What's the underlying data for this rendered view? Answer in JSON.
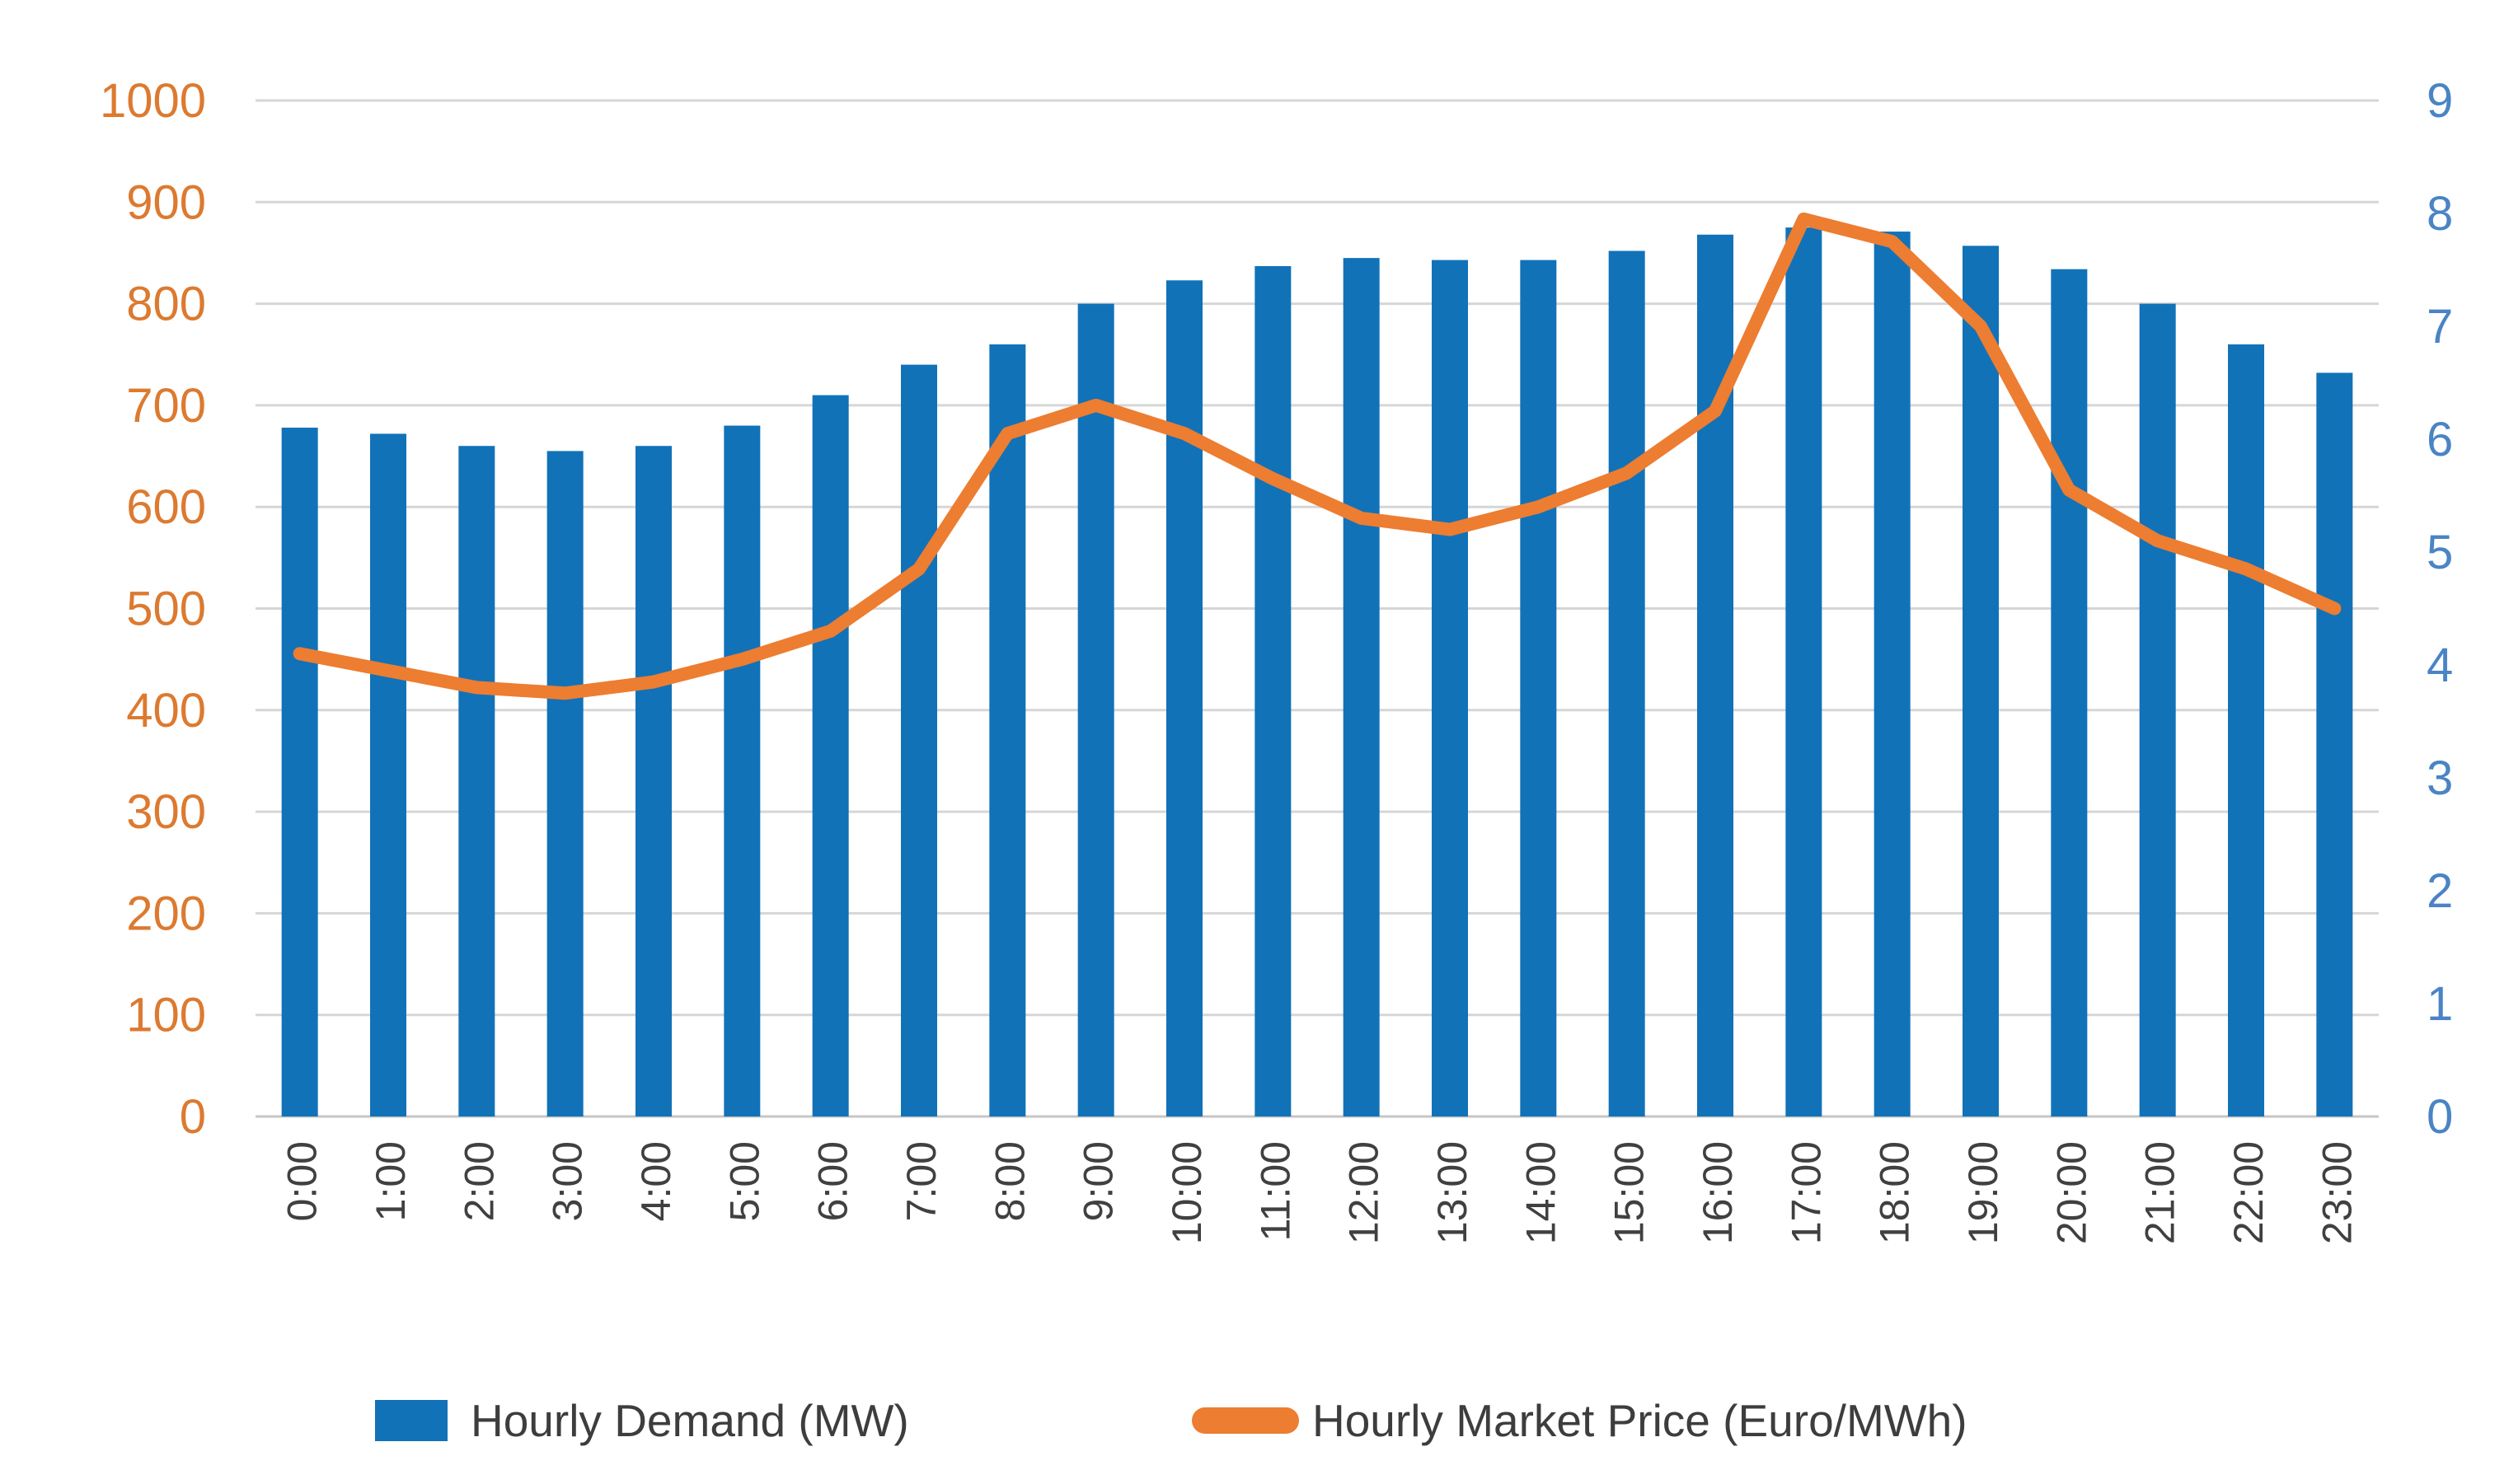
{
  "chart_data": {
    "type": "bar",
    "subtype": "combo-bar-line-dual-axis",
    "title": "",
    "categories": [
      "0:00",
      "1:00",
      "2:00",
      "3:00",
      "4:00",
      "5:00",
      "6:00",
      "7:00",
      "8:00",
      "9:00",
      "10:00",
      "11:00",
      "12:00",
      "13:00",
      "14:00",
      "15:00",
      "16:00",
      "17:00",
      "18:00",
      "19:00",
      "20:00",
      "21:00",
      "22:00",
      "23:00"
    ],
    "series": [
      {
        "name": "Hourly Demand (MW)",
        "type": "bar",
        "axis": "left",
        "color": "#1172B8",
        "values": [
          678,
          672,
          660,
          655,
          660,
          680,
          710,
          740,
          760,
          800,
          823,
          837,
          845,
          843,
          843,
          852,
          868,
          875,
          871,
          857,
          834,
          800,
          760,
          732
        ]
      },
      {
        "name": "Hourly Market Price (Euro/MWh)",
        "type": "line",
        "axis": "right",
        "color": "#ED7D31",
        "values": [
          4.1,
          3.95,
          3.8,
          3.75,
          3.85,
          4.05,
          4.3,
          4.85,
          6.05,
          6.3,
          6.05,
          5.65,
          5.3,
          5.2,
          5.4,
          5.7,
          6.25,
          7.95,
          7.75,
          7.0,
          5.55,
          5.1,
          4.85,
          4.5
        ]
      }
    ],
    "left_axis": {
      "min": 0,
      "max": 1000,
      "step": 100,
      "ticks": [
        "0",
        "100",
        "200",
        "300",
        "400",
        "500",
        "600",
        "700",
        "800",
        "900",
        "1000"
      ],
      "label_color": "#DC7A30"
    },
    "right_axis": {
      "min": 0,
      "max": 9,
      "step": 1,
      "ticks": [
        "0",
        "1",
        "2",
        "3",
        "4",
        "5",
        "6",
        "7",
        "8",
        "9"
      ],
      "label_color": "#4A84C4"
    },
    "x_axis": {
      "label_color": "#404040",
      "label_rotation_deg": -90
    },
    "grid": true,
    "gridline_color": "#D6D6D6",
    "legend_position": "bottom"
  },
  "legend": {
    "demand_label": "Hourly Demand (MW)",
    "price_label": "Hourly Market Price (Euro/MWh)"
  }
}
